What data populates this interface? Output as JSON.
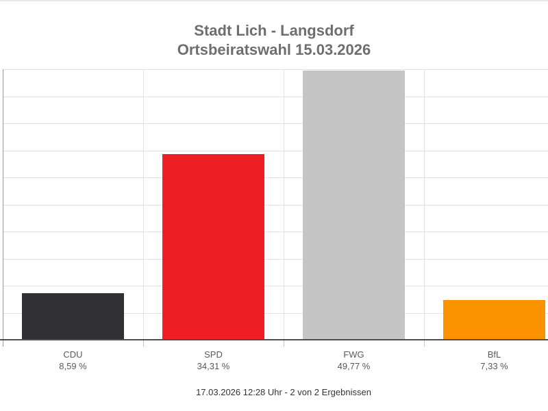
{
  "header": {
    "title": "Stadt Lich - Langsdorf",
    "subtitle": "Ortsbeiratswahl 15.03.2026"
  },
  "chart_data": {
    "type": "bar",
    "title": "Stadt Lich - Langsdorf",
    "subtitle": "Ortsbeiratswahl 15.03.2026",
    "categories": [
      "CDU",
      "SPD",
      "FWG",
      "BfL"
    ],
    "values": [
      8.59,
      34.31,
      49.77,
      7.33
    ],
    "value_labels": [
      "8,59 %",
      "34,31 %",
      "49,77 %",
      "7,33 %"
    ],
    "bar_colors": [
      "#313133",
      "#ee1e24",
      "#c5c5c5",
      "#fb9200"
    ],
    "xlabel": "",
    "ylabel": "",
    "ylim": [
      0,
      50
    ],
    "grid": true,
    "grid_step": 5,
    "legend": false
  },
  "footer": {
    "status_line": "17.03.2026 12:28 Uhr - 2 von 2 Ergebnissen"
  },
  "colors": {
    "title_text": "#6e6e6e",
    "label_text": "#595959",
    "footer_text": "#333333",
    "axis": "#4d4d4d",
    "gridline": "#e2e2e2"
  }
}
